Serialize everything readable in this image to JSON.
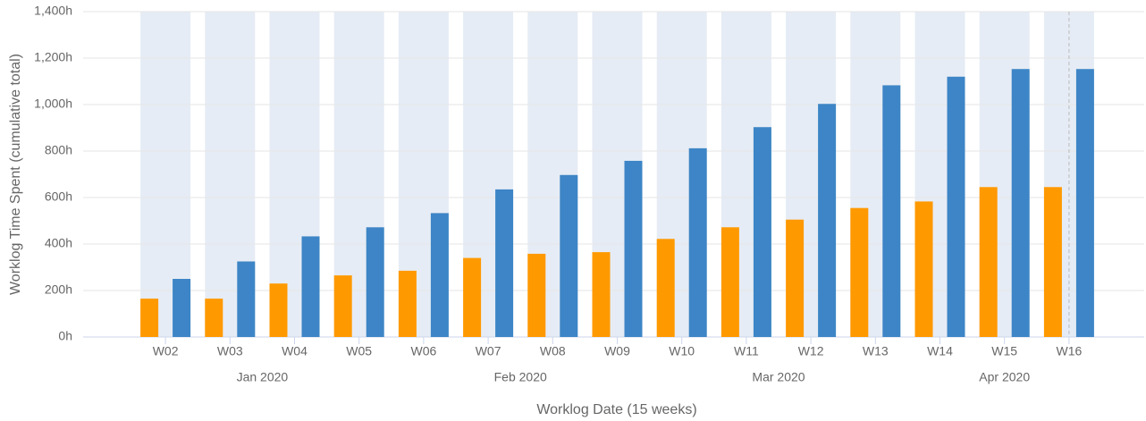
{
  "chart_data": {
    "type": "bar",
    "x_label": "Worklog Date (15 weeks)",
    "y_label": "Worklog Time Spent (cumulative total)",
    "categories": [
      "W02",
      "W03",
      "W04",
      "W05",
      "W06",
      "W07",
      "W08",
      "W09",
      "W10",
      "W11",
      "W12",
      "W13",
      "W14",
      "W15",
      "W16"
    ],
    "category_groups": [
      "Jan 2020",
      "Jan 2020",
      "Jan 2020",
      "Jan 2020",
      "Feb 2020",
      "Feb 2020",
      "Feb 2020",
      "Feb 2020",
      "Mar 2020",
      "Mar 2020",
      "Mar 2020",
      "Mar 2020",
      "Apr 2020",
      "Apr 2020",
      "Apr 2020"
    ],
    "series": [
      {
        "color": "#ff9900",
        "values": [
          165,
          165,
          230,
          265,
          285,
          340,
          358,
          365,
          422,
          472,
          505,
          555,
          583,
          645,
          645
        ]
      },
      {
        "color": "#3d85c6",
        "values": [
          250,
          325,
          433,
          472,
          533,
          635,
          697,
          758,
          812,
          903,
          1003,
          1083,
          1120,
          1153,
          1153
        ]
      }
    ],
    "ylim": [
      0,
      1400
    ],
    "yticks": [
      {
        "value": 0,
        "label": "0h"
      },
      {
        "value": 200,
        "label": "200h"
      },
      {
        "value": 400,
        "label": "400h"
      },
      {
        "value": 600,
        "label": "600h"
      },
      {
        "value": 800,
        "label": "800h"
      },
      {
        "value": 1000,
        "label": "1,000h"
      },
      {
        "value": 1200,
        "label": "1,200h"
      },
      {
        "value": 1400,
        "label": "1,400h"
      }
    ],
    "grid": true
  }
}
